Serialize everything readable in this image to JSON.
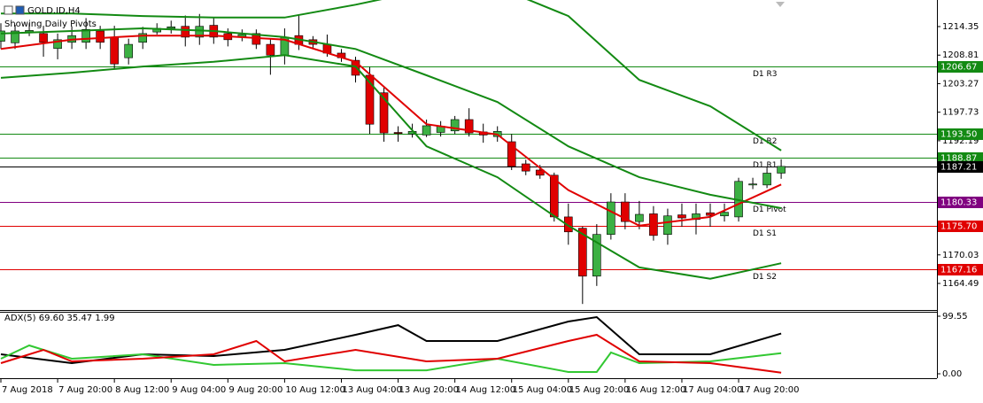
{
  "chart_data": {
    "type": "candlestick",
    "title": "GOLD.ID,H4",
    "subtitle": "Showing Daily Pivots",
    "categories": [
      "7 Aug 2018",
      null,
      null,
      null,
      "7 Aug 20:00",
      null,
      null,
      null,
      "8 Aug 12:00",
      null,
      null,
      null,
      "9 Aug 04:00",
      null,
      null,
      null,
      "9 Aug 20:00",
      null,
      null,
      null,
      "10 Aug 12:00",
      null,
      null,
      null,
      "13 Aug 04:00",
      null,
      null,
      null,
      "13 Aug 20:00",
      null,
      null,
      null,
      "14 Aug 12:00",
      null,
      null,
      null,
      "15 Aug 04:00",
      null,
      null,
      null,
      "15 Aug 20:00",
      null,
      null,
      null,
      "16 Aug 12:00",
      null,
      null,
      null,
      "17 Aug 04:00",
      null,
      null,
      null,
      "17 Aug 20:00",
      null,
      null,
      null
    ],
    "open": [
      1211.5,
      1211.2,
      1213.3,
      1213.0,
      1210.1,
      1211.3,
      1211.3,
      1213.5,
      1212.3,
      1208.3,
      1211.3,
      1213.3,
      1214.0,
      1214.4,
      1212.3,
      1214.6,
      1213.0,
      1212.4,
      1213.0,
      1210.9,
      1208.8,
      1212.6,
      1211.8,
      1210.9,
      1209.2,
      1207.8,
      1204.9,
      1201.5,
      1193.8,
      1193.5,
      1193.3,
      1193.8,
      1194.1,
      1196.3,
      1193.9,
      1193.0,
      1192.0,
      1187.7,
      1186.5,
      1185.5,
      1177.4,
      1175.2,
      1165.9,
      1174.0,
      1180.3,
      1176.5,
      1178.0,
      1174.0,
      1177.8,
      1176.9,
      1178.2,
      1177.6,
      1177.4,
      1183.6,
      1183.6,
      1185.9
    ],
    "high": [
      1215.0,
      1214.7,
      1215.0,
      1214.5,
      1213.0,
      1214.4,
      1216.0,
      1214.5,
      1214.5,
      1212.0,
      1214.3,
      1215.0,
      1215.5,
      1216.5,
      1216.8,
      1216.0,
      1214.0,
      1213.8,
      1213.8,
      1212.0,
      1214.0,
      1216.5,
      1212.5,
      1212.8,
      1210.0,
      1208.5,
      1206.5,
      1202.5,
      1195.0,
      1195.5,
      1196.3,
      1196.0,
      1197.0,
      1198.5,
      1195.5,
      1195.0,
      1193.5,
      1188.5,
      1187.5,
      1186.0,
      1180.0,
      1175.5,
      1176.0,
      1182.0,
      1182.0,
      1180.5,
      1179.5,
      1179.0,
      1180.0,
      1180.0,
      1180.0,
      1180.0,
      1185.0,
      1185.0,
      1187.0,
      1188.6
    ],
    "low": [
      1210.0,
      1210.0,
      1212.5,
      1208.5,
      1208.0,
      1210.0,
      1210.0,
      1210.0,
      1206.0,
      1207.0,
      1210.0,
      1212.8,
      1213.0,
      1210.5,
      1210.8,
      1211.0,
      1210.5,
      1211.5,
      1210.0,
      1205.0,
      1207.0,
      1209.8,
      1210.0,
      1208.5,
      1207.5,
      1203.5,
      1193.5,
      1192.0,
      1192.0,
      1192.8,
      1192.9,
      1193.0,
      1193.5,
      1193.0,
      1191.8,
      1192.0,
      1186.5,
      1185.5,
      1184.8,
      1176.5,
      1172.0,
      1160.5,
      1164.0,
      1173.0,
      1175.0,
      1175.0,
      1172.8,
      1172.0,
      1175.5,
      1174.0,
      1175.5,
      1176.5,
      1176.5,
      1182.8,
      1183.0,
      1184.8
    ],
    "close": [
      1213.5,
      1213.5,
      1213.6,
      1211.3,
      1211.8,
      1212.6,
      1213.8,
      1211.3,
      1207.1,
      1210.9,
      1213.0,
      1214.0,
      1214.3,
      1212.3,
      1214.4,
      1212.3,
      1211.8,
      1212.8,
      1210.9,
      1208.8,
      1212.3,
      1210.9,
      1210.9,
      1209.2,
      1208.3,
      1204.9,
      1195.4,
      1193.7,
      1193.6,
      1194.0,
      1195.1,
      1195.0,
      1196.3,
      1193.7,
      1193.3,
      1194.0,
      1187.2,
      1186.3,
      1185.5,
      1177.4,
      1174.5,
      1165.9,
      1174.0,
      1180.3,
      1176.5,
      1177.9,
      1173.8,
      1177.6,
      1177.2,
      1178.0,
      1177.7,
      1178.3,
      1184.3,
      1183.8,
      1185.9,
      1187.21
    ],
    "up_color": "#3cb043",
    "down_color": "#e00000",
    "ylim": [
      1159.33,
      1219.51
    ],
    "yticks": [
      1214.35,
      1208.81,
      1203.27,
      1197.73,
      1192.19,
      1170.03,
      1164.49
    ],
    "overlays": [
      {
        "color": "#e00000",
        "x": [
          0,
          5,
          10,
          15,
          20,
          25,
          30,
          35,
          40,
          45,
          50,
          55
        ],
        "values": [
          1210.0,
          1211.8,
          1212.6,
          1212.6,
          1211.8,
          1207.5,
          1195.4,
          1193.4,
          1182.6,
          1175.7,
          1177.4,
          1183.7
        ]
      },
      {
        "color": "#138a13",
        "x": [
          0,
          5,
          10,
          15,
          20,
          25,
          30,
          35,
          40,
          45,
          50,
          55
        ],
        "values": [
          1216.9,
          1216.9,
          1216.4,
          1216.1,
          1216.1,
          1218.6,
          1221.5,
          1222.0,
          1216.4,
          1204.0,
          1198.9,
          1190.3
        ]
      },
      {
        "color": "#138a13",
        "x": [
          0,
          5,
          10,
          15,
          20,
          25,
          30,
          35,
          40,
          45,
          50,
          55
        ],
        "values": [
          1213.0,
          1213.5,
          1214.0,
          1213.5,
          1212.3,
          1210.0,
          1204.9,
          1199.7,
          1191.1,
          1185.1,
          1181.7,
          1179.1
        ]
      },
      {
        "color": "#138a13",
        "x": [
          0,
          5,
          10,
          15,
          20,
          25,
          30,
          35,
          40,
          45,
          50,
          55
        ],
        "values": [
          1204.4,
          1205.4,
          1206.6,
          1207.5,
          1208.8,
          1206.6,
          1191.1,
          1185.1,
          1175.7,
          1167.6,
          1165.4,
          1168.4
        ]
      }
    ],
    "levels": [
      {
        "name": "D1 R3",
        "value": 1206.67,
        "label": "1206.67",
        "color": "#138a13"
      },
      {
        "name": "D1 R2",
        "value": 1193.5,
        "label": "1193.50",
        "color": "#138a13"
      },
      {
        "name": "D1 R1",
        "value": 1188.87,
        "label": "1188.87",
        "color": "#138a13"
      },
      {
        "name": "D1 Pivot",
        "value": 1180.33,
        "label": "1180.33",
        "color": "#800080"
      },
      {
        "name": "D1 S1",
        "value": 1175.7,
        "label": "1175.70",
        "color": "#e00000"
      },
      {
        "name": "D1 S2",
        "value": 1167.16,
        "label": "1167.16",
        "color": "#e00000"
      }
    ],
    "current": {
      "value": 1187.21,
      "label": "1187.21",
      "color": "#000000"
    },
    "indicator": {
      "title": "ADX(5) 69.60 35.47 1.99",
      "ylim": [
        -7.66,
        107.2
      ],
      "yticks": [
        99.55,
        {
          "value": 0,
          "label": "0.00"
        }
      ],
      "series": [
        {
          "color": "#000000",
          "x": [
            0,
            5,
            10,
            15,
            20,
            25,
            28,
            30,
            35,
            40,
            42,
            45,
            50,
            55
          ],
          "values": [
            33.7,
            18.4,
            33.7,
            30.6,
            41.3,
            67.4,
            84,
            56.7,
            56.7,
            90.4,
            98,
            33.7,
            33.7,
            69.6
          ]
        },
        {
          "color": "#32c832",
          "x": [
            0,
            2,
            5,
            10,
            15,
            20,
            25,
            30,
            35,
            40,
            42,
            43,
            45,
            50,
            55
          ],
          "values": [
            26,
            49,
            26,
            33.7,
            15.3,
            18.4,
            6,
            6,
            26,
            3,
            3,
            36.8,
            18.4,
            21.4,
            35.47
          ]
        },
        {
          "color": "#e00000",
          "x": [
            0,
            3,
            5,
            10,
            15,
            18,
            20,
            25,
            30,
            35,
            40,
            42,
            45,
            50,
            55
          ],
          "values": [
            18.4,
            41.3,
            21.4,
            26,
            33.7,
            56.7,
            21.4,
            41.3,
            21.4,
            26,
            56.7,
            67.4,
            21.4,
            18.4,
            1.99
          ]
        }
      ]
    }
  }
}
